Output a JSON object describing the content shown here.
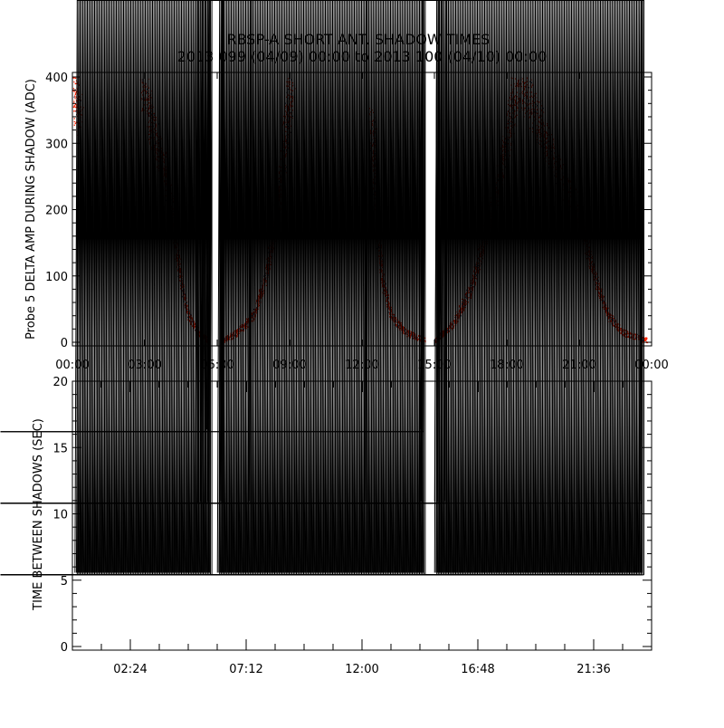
{
  "chart_data": [
    {
      "type": "scatter",
      "title": "RBSP-A SHORT ANT. SHADOW TIMES",
      "subtitle": "2013 099 (04/09) 00:00 to 2013 100 (04/10) 00:00",
      "xlabel": "",
      "ylabel": "Probe 5 DELTA AMP DURING SHADOW (ADC)",
      "xlim_hours": [
        0,
        24
      ],
      "ylim": [
        0,
        400
      ],
      "x_tick_labels": [
        "00:00",
        "03:00",
        "06:00",
        "09:00",
        "12:00",
        "15:00",
        "18:00",
        "21:00",
        "00:00"
      ],
      "y_tick_labels": [
        "0",
        "100",
        "200",
        "300",
        "400"
      ],
      "colors": {
        "primary": "#ff2200",
        "secondary": "#334466"
      },
      "segments_approx": [
        {
          "name": "pass-1-end",
          "points": [
            [
              0.0,
              400
            ],
            [
              0.15,
              360
            ],
            [
              0.3,
              330
            ]
          ]
        },
        {
          "name": "pass-2-descending",
          "points": [
            [
              2.9,
              400
            ],
            [
              3.3,
              320
            ],
            [
              3.8,
              260
            ],
            [
              4.2,
              170
            ],
            [
              4.5,
              90
            ],
            [
              4.8,
              40
            ],
            [
              5.2,
              15
            ],
            [
              5.6,
              3
            ]
          ]
        },
        {
          "name": "pass-2-ascending",
          "points": [
            [
              6.2,
              2
            ],
            [
              6.8,
              15
            ],
            [
              7.5,
              40
            ],
            [
              8.0,
              100
            ],
            [
              8.5,
              200
            ],
            [
              8.8,
              300
            ],
            [
              9.1,
              400
            ]
          ]
        },
        {
          "name": "pass-3-descending",
          "points": [
            [
              12.4,
              330
            ],
            [
              12.6,
              200
            ],
            [
              12.8,
              100
            ],
            [
              13.2,
              40
            ],
            [
              13.8,
              15
            ],
            [
              14.6,
              4
            ]
          ]
        },
        {
          "name": "pass-3-ascending",
          "points": [
            [
              15.0,
              2
            ],
            [
              15.8,
              30
            ],
            [
              16.5,
              80
            ],
            [
              17.0,
              150
            ],
            [
              17.6,
              230
            ],
            [
              18.1,
              330
            ],
            [
              18.5,
              400
            ]
          ]
        },
        {
          "name": "pass-3-peak-descending",
          "points": [
            [
              18.5,
              400
            ],
            [
              19.0,
              360
            ],
            [
              19.6,
              300
            ],
            [
              20.2,
              250
            ],
            [
              20.8,
              210
            ],
            [
              21.3,
              150
            ],
            [
              21.7,
              90
            ],
            [
              22.2,
              40
            ],
            [
              22.8,
              15
            ],
            [
              23.8,
              3
            ]
          ]
        }
      ]
    },
    {
      "type": "scatter",
      "marker": "asterisk",
      "ylabel": "TIME BETWEEN SHADOWS (SEC)",
      "xlim_hours": [
        0,
        24
      ],
      "ylim": [
        0,
        20
      ],
      "x_tick_labels": [
        "02:24",
        "07:12",
        "12:00",
        "16:48",
        "21:36"
      ],
      "x_tick_hours": [
        2.4,
        7.2,
        12.0,
        16.8,
        21.6
      ],
      "y_tick_labels": [
        "0",
        "5",
        "10",
        "15",
        "20"
      ],
      "baseline": {
        "value": 5.4,
        "ranges_hours": [
          [
            0.2,
            5.8
          ],
          [
            6.1,
            14.65
          ],
          [
            15.1,
            23.7
          ]
        ]
      },
      "points": [
        [
          5.2,
          10.8
        ],
        [
          5.3,
          10.8
        ],
        [
          5.4,
          10.8
        ],
        [
          5.5,
          10.8
        ],
        [
          5.6,
          10.8
        ],
        [
          5.7,
          10.8
        ],
        [
          6.2,
          10.8
        ],
        [
          6.25,
          10.8
        ],
        [
          7.4,
          10.8
        ],
        [
          12.2,
          10.8
        ],
        [
          14.5,
          10.8
        ],
        [
          14.55,
          10.8
        ],
        [
          15.1,
          10.8
        ],
        [
          15.2,
          10.8
        ],
        [
          15.3,
          10.8
        ],
        [
          15.5,
          10.8
        ],
        [
          23.6,
          10.8
        ],
        [
          5.65,
          16.2
        ],
        [
          14.5,
          16.2
        ],
        [
          14.55,
          16.2
        ]
      ]
    }
  ]
}
